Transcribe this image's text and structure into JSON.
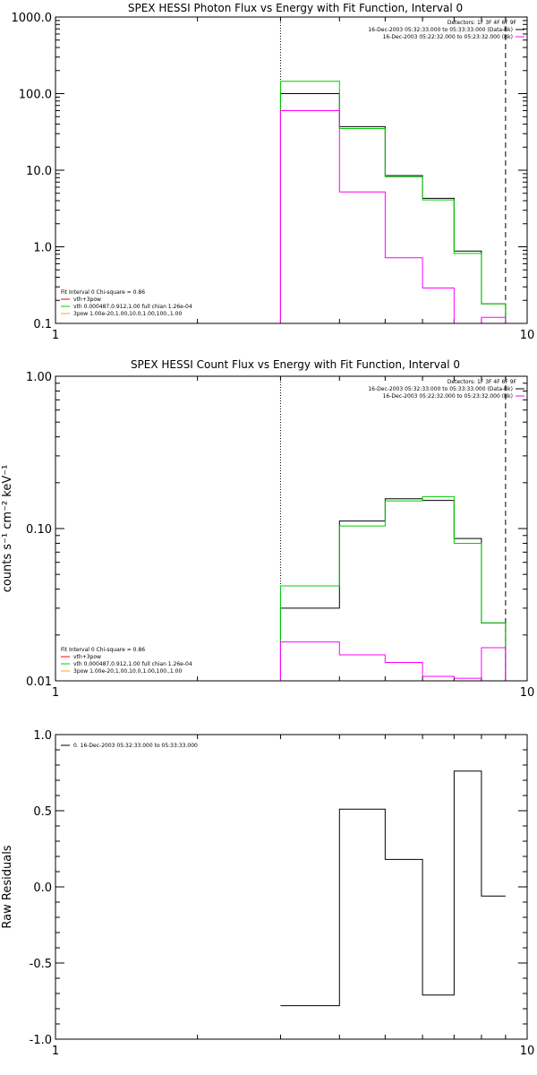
{
  "colors": {
    "data": "#000000",
    "model": "#00cc00",
    "component": "#ff00ff",
    "orange": "#ffa500",
    "red": "#ff0000"
  },
  "chart_data": [
    {
      "type": "line",
      "title": "SPEX HESSI Photon Flux vs Energy with Fit Function, Interval 0",
      "xlabel": "",
      "ylabel": "",
      "x_scale": "log",
      "y_scale": "log",
      "xlim": [
        1,
        10
      ],
      "ylim": [
        0.1,
        1000
      ],
      "x_tick_labels": [
        "1",
        "10"
      ],
      "y_ticks": [
        0.1,
        1,
        10,
        100,
        1000
      ],
      "y_tick_labels": [
        "0.1",
        "1.0",
        "10.0",
        "100.0",
        "1000.0"
      ],
      "energy_edges": [
        3,
        4,
        5,
        6,
        7,
        8,
        9
      ],
      "fit_range": [
        3,
        9
      ],
      "series": [
        {
          "key": "data",
          "color": "#000000",
          "values": [
            100,
            37,
            8.5,
            4.3,
            0.88,
            0.18
          ]
        },
        {
          "key": "model",
          "color": "#00cc00",
          "values": [
            145,
            35,
            8.2,
            4.1,
            0.82,
            0.18
          ]
        },
        {
          "key": "component",
          "color": "#ff00ff",
          "values": [
            60,
            5.2,
            0.72,
            0.29,
            0.1,
            0.12
          ]
        }
      ],
      "legend_top": {
        "detectors": "Detectors: 1F 3F 4F 6F 9F",
        "entries": [
          {
            "text": "16-Dec-2003 05:32:33.000 to 05:33:33.000 (Data-Bk)",
            "color": "#000000"
          },
          {
            "text": "16-Dec-2003 05:22:32.000 to 05:23:32.000 (Bk)",
            "color": "#ff00ff"
          }
        ]
      },
      "legend_bottom": {
        "header": "Fit Interval 0   Chi-square = 0.86",
        "entries": [
          {
            "text": "vth+3pow",
            "color": "#ff0000"
          },
          {
            "text": "vth 0.000487,0.912,1.00  full chian 1.26e-04",
            "color": "#00cc00"
          },
          {
            "text": "3pow 1.00e-20,1.00,10.0,1.00,100.,1.00",
            "color": "#ffa500"
          }
        ]
      }
    },
    {
      "type": "line",
      "title": "SPEX HESSI Count Flux vs Energy with Fit Function, Interval 0",
      "xlabel": "",
      "ylabel": "counts s⁻¹ cm⁻² keV⁻¹",
      "x_scale": "log",
      "y_scale": "log",
      "xlim": [
        1,
        10
      ],
      "ylim": [
        0.01,
        1
      ],
      "x_tick_labels": [
        "1",
        "10"
      ],
      "y_ticks": [
        0.01,
        0.1,
        1
      ],
      "y_tick_labels": [
        "0.01",
        "0.10",
        "1.00"
      ],
      "energy_edges": [
        3,
        4,
        5,
        6,
        7,
        8,
        9
      ],
      "fit_range": [
        3,
        9
      ],
      "series": [
        {
          "key": "data",
          "color": "#000000",
          "values": [
            0.03,
            0.112,
            0.157,
            0.153,
            0.086,
            0.024
          ]
        },
        {
          "key": "model",
          "color": "#00cc00",
          "values": [
            0.042,
            0.104,
            0.152,
            0.162,
            0.08,
            0.024
          ]
        },
        {
          "key": "component",
          "color": "#ff00ff",
          "values": [
            0.018,
            0.0148,
            0.0132,
            0.0107,
            0.0104,
            0.0165
          ]
        }
      ],
      "legend_top": {
        "detectors": "Detectors: 1F 3F 4F 6F 9F",
        "entries": [
          {
            "text": "16-Dec-2003 05:32:33.000 to 05:33:33.000 (Data-Bk)",
            "color": "#000000"
          },
          {
            "text": "16-Dec-2003 05:22:32.000 to 05:23:32.000 (Bk)",
            "color": "#ff00ff"
          }
        ]
      },
      "legend_bottom": {
        "header": "Fit Interval 0   Chi-square = 0.86",
        "entries": [
          {
            "text": "vth+3pow",
            "color": "#ff0000"
          },
          {
            "text": "vth 0.000487,0.912,1.00  full chian 1.26e-04",
            "color": "#00cc00"
          },
          {
            "text": "3pow 1.00e-20,1.00,10.0,1.00,100.,1.00",
            "color": "#ffa500"
          }
        ]
      }
    },
    {
      "type": "line",
      "title": "",
      "xlabel": "",
      "ylabel": "Raw Residuals",
      "x_scale": "log",
      "y_scale": "linear",
      "xlim": [
        1,
        10
      ],
      "ylim": [
        -1,
        1
      ],
      "x_tick_labels": [
        "1",
        "10"
      ],
      "y_ticks": [
        -1,
        -0.5,
        0,
        0.5,
        1
      ],
      "y_tick_labels": [
        "-1.0",
        "-0.5",
        "0.0",
        "0.5",
        "1.0"
      ],
      "energy_edges": [
        3,
        4,
        5,
        6,
        7,
        8,
        9
      ],
      "series": [
        {
          "key": "residuals",
          "color": "#000000",
          "values": [
            -0.78,
            0.51,
            0.18,
            -0.71,
            0.76,
            -0.06
          ]
        }
      ],
      "legend_top": {
        "entries": [
          {
            "text": "0. 16-Dec-2003 05:32:33.000 to 05:33:33.000",
            "color": "#000000"
          }
        ]
      }
    }
  ]
}
